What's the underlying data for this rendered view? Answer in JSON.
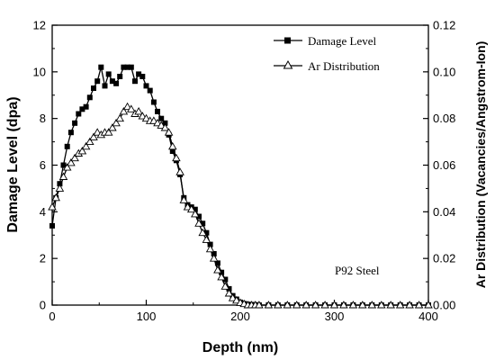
{
  "chart_data": {
    "type": "line",
    "xlabel": "Depth (nm)",
    "ylabel_left": "Damage Level (dpa)",
    "ylabel_right": "Ar Distribution (Vacancies/Angstrom-Ion)",
    "xlim": [
      0,
      400
    ],
    "ylim_left": [
      0,
      12
    ],
    "ylim_right": [
      0,
      0.12
    ],
    "x_ticks": [
      "0",
      "100",
      "200",
      "300",
      "400"
    ],
    "y_ticks_left": [
      "0",
      "2",
      "4",
      "6",
      "8",
      "10",
      "12"
    ],
    "y_ticks_right": [
      "0.00",
      "0.02",
      "0.04",
      "0.06",
      "0.08",
      "0.10",
      "0.12"
    ],
    "grid": false,
    "legend_position": "top-right",
    "annotation": "P92 Steel",
    "series": [
      {
        "name": "Damage Level",
        "axis": "left",
        "marker": "square",
        "x": [
          0,
          4,
          8,
          12,
          16,
          20,
          24,
          28,
          32,
          36,
          40,
          44,
          48,
          52,
          56,
          60,
          64,
          68,
          72,
          76,
          80,
          84,
          88,
          92,
          96,
          100,
          104,
          108,
          112,
          116,
          120,
          124,
          128,
          132,
          136,
          140,
          144,
          148,
          152,
          156,
          160,
          164,
          168,
          172,
          176,
          180,
          184,
          188,
          192,
          196,
          200,
          204,
          208,
          212,
          216,
          220,
          230,
          240,
          250,
          260,
          270,
          280,
          290,
          300,
          310,
          320,
          330,
          340,
          350,
          360,
          370,
          380,
          390,
          400
        ],
        "values": [
          3.4,
          4.6,
          5.2,
          6.0,
          6.8,
          7.4,
          7.8,
          8.2,
          8.4,
          8.5,
          8.9,
          9.3,
          9.6,
          10.2,
          9.4,
          9.9,
          9.6,
          9.5,
          9.8,
          10.2,
          10.2,
          10.2,
          9.6,
          9.9,
          9.8,
          9.4,
          9.2,
          8.7,
          8.3,
          8.0,
          7.8,
          7.3,
          6.6,
          6.2,
          5.6,
          4.6,
          4.3,
          4.2,
          4.1,
          3.8,
          3.5,
          3.1,
          2.6,
          2.2,
          1.8,
          1.4,
          1.1,
          0.7,
          0.4,
          0.25,
          0.12,
          0.06,
          0.03,
          0.02,
          0.01,
          0.0,
          0.0,
          0.0,
          0.0,
          0.0,
          0.0,
          0.0,
          0.0,
          0.0,
          0.0,
          0.0,
          0.0,
          0.0,
          0.0,
          0.0,
          0.0,
          0.0,
          0.0,
          0.0
        ]
      },
      {
        "name": "Ar Distribution",
        "axis": "right",
        "marker": "triangle-open",
        "x": [
          0,
          4,
          8,
          12,
          16,
          20,
          24,
          28,
          32,
          36,
          40,
          44,
          48,
          52,
          56,
          60,
          64,
          68,
          72,
          76,
          80,
          84,
          88,
          92,
          96,
          100,
          104,
          108,
          112,
          116,
          120,
          124,
          128,
          132,
          136,
          140,
          144,
          148,
          152,
          156,
          160,
          164,
          168,
          172,
          176,
          180,
          184,
          188,
          192,
          196,
          200,
          204,
          208,
          212,
          216,
          220,
          230,
          240,
          250,
          260,
          270,
          280,
          290,
          300,
          310,
          320,
          330,
          340,
          350,
          360,
          370,
          380,
          390,
          400
        ],
        "values": [
          0.042,
          0.046,
          0.05,
          0.055,
          0.059,
          0.061,
          0.063,
          0.065,
          0.066,
          0.068,
          0.07,
          0.072,
          0.074,
          0.073,
          0.074,
          0.074,
          0.076,
          0.078,
          0.08,
          0.083,
          0.085,
          0.084,
          0.082,
          0.083,
          0.081,
          0.08,
          0.079,
          0.079,
          0.078,
          0.077,
          0.076,
          0.074,
          0.068,
          0.063,
          0.057,
          0.045,
          0.042,
          0.041,
          0.039,
          0.035,
          0.031,
          0.028,
          0.024,
          0.02,
          0.015,
          0.012,
          0.008,
          0.005,
          0.003,
          0.002,
          0.001,
          0.0005,
          0.0,
          0.0,
          0.0,
          0.0,
          0.0,
          0.0,
          0.0,
          0.0,
          0.0,
          0.0,
          0.0,
          0.0,
          0.0,
          0.0,
          0.0,
          0.0,
          0.0,
          0.0,
          0.0,
          0.0,
          0.0,
          0.0
        ]
      }
    ]
  }
}
